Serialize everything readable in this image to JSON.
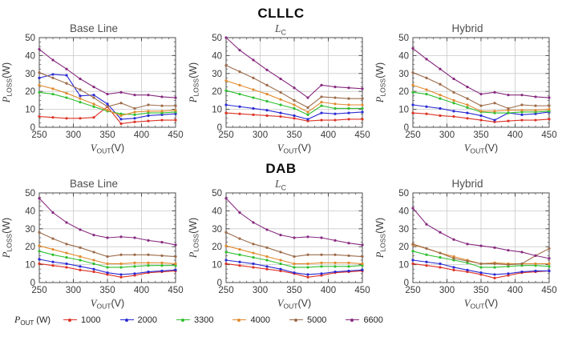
{
  "figure": {
    "background": "#ffffff",
    "frame_color": "#4d4d4d",
    "grid_color": "#c9c9c9",
    "tick_label_color": "#3a3a3a",
    "title_color": "#4f4f4f"
  },
  "groups": [
    {
      "title": "CLLLC"
    },
    {
      "title": "DAB"
    }
  ],
  "axes": {
    "x": {
      "sym": "V",
      "sub": "OUT",
      "unit": "(V)",
      "min": 250,
      "max": 450,
      "ticks": [
        250,
        300,
        350,
        400,
        450
      ],
      "grid": [
        300,
        350,
        400
      ],
      "minor_step": 10
    },
    "y": {
      "sym": "P",
      "sub": "LOSS",
      "unit": "(W)",
      "min": 0,
      "max": 50,
      "ticks": [
        0,
        10,
        20,
        30,
        40,
        50
      ],
      "grid": [
        10,
        20,
        30,
        40
      ],
      "minor_step": 2.5
    }
  },
  "legend": {
    "label_sym": "P",
    "label_sub": "OUT",
    "label_unit": "(W)",
    "entries": [
      {
        "label": "1000",
        "color": "#dd3226"
      },
      {
        "label": "2000",
        "color": "#2a2ad4"
      },
      {
        "label": "3300",
        "color": "#2fbf2f"
      },
      {
        "label": "4000",
        "color": "#e08a2e"
      },
      {
        "label": "5000",
        "color": "#9c6b4a"
      },
      {
        "label": "6600",
        "color": "#872a7f"
      }
    ]
  },
  "chart_data": [
    {
      "type": "line",
      "group": "CLLLC",
      "title": {
        "text": "Base Line"
      },
      "xlabel": "V_OUT(V)",
      "ylabel": "P_LOSS(W)",
      "xlim": [
        250,
        450
      ],
      "ylim": [
        0,
        50
      ],
      "x": [
        250,
        270,
        290,
        310,
        330,
        350,
        370,
        390,
        410,
        430,
        450
      ],
      "series": [
        {
          "name": "1000",
          "color": "#dd3226",
          "values": [
            6,
            5.5,
            5,
            5,
            5.5,
            11.5,
            2,
            3,
            3.5,
            4,
            4
          ]
        },
        {
          "name": "2000",
          "color": "#2a2ad4",
          "values": [
            27.5,
            29.5,
            29,
            17.5,
            18,
            13,
            4.5,
            5,
            6.5,
            7,
            7.5
          ]
        },
        {
          "name": "3300",
          "color": "#2fbf2f",
          "values": [
            19.5,
            18.5,
            16.5,
            14,
            11.5,
            9,
            7.5,
            7,
            8,
            8,
            8.5
          ]
        },
        {
          "name": "4000",
          "color": "#e08a2e",
          "values": [
            23.5,
            21.5,
            19,
            16,
            13,
            9.5,
            6.5,
            8.5,
            9,
            9,
            9.5
          ]
        },
        {
          "name": "5000",
          "color": "#9c6b4a",
          "values": [
            30.5,
            27.5,
            24.5,
            21,
            16.5,
            11.5,
            13.5,
            10.5,
            12.5,
            12,
            12
          ]
        },
        {
          "name": "6600",
          "color": "#872a7f",
          "values": [
            43.5,
            37.5,
            32.5,
            27,
            22.5,
            18.5,
            19.5,
            18,
            18,
            17,
            16.5
          ]
        }
      ]
    },
    {
      "type": "line",
      "group": "CLLLC",
      "title": {
        "sym": "L",
        "sub": "C"
      },
      "xlabel": "V_OUT(V)",
      "ylabel": "P_LOSS(W)",
      "xlim": [
        250,
        450
      ],
      "ylim": [
        0,
        50
      ],
      "x": [
        250,
        270,
        290,
        310,
        330,
        350,
        370,
        390,
        410,
        430,
        450
      ],
      "series": [
        {
          "name": "1000",
          "color": "#dd3226",
          "values": [
            8,
            7.5,
            7,
            6.5,
            6,
            5,
            3.5,
            4,
            4,
            4.5,
            4.5
          ]
        },
        {
          "name": "2000",
          "color": "#2a2ad4",
          "values": [
            12.5,
            11.5,
            10.5,
            9.5,
            8,
            6.5,
            4.5,
            8,
            7.5,
            8,
            8.5
          ]
        },
        {
          "name": "3300",
          "color": "#2fbf2f",
          "values": [
            20.5,
            18.5,
            16.5,
            14.5,
            12.5,
            10.5,
            7,
            12,
            10.5,
            10.5,
            10.5
          ]
        },
        {
          "name": "4000",
          "color": "#e08a2e",
          "values": [
            26,
            23.5,
            21,
            18.5,
            15.5,
            12.5,
            8.5,
            14,
            13,
            12.5,
            12.5
          ]
        },
        {
          "name": "5000",
          "color": "#9c6b4a",
          "values": [
            34.5,
            31,
            27.5,
            23.5,
            19.5,
            15,
            11,
            17,
            16.5,
            16,
            16
          ]
        },
        {
          "name": "6600",
          "color": "#872a7f",
          "values": [
            50,
            43,
            37.5,
            32,
            27,
            22,
            16.5,
            23.5,
            22.5,
            22,
            21.5
          ]
        }
      ]
    },
    {
      "type": "line",
      "group": "CLLLC",
      "title": {
        "text": "Hybrid"
      },
      "xlabel": "V_OUT(V)",
      "ylabel": "P_LOSS(W)",
      "xlim": [
        250,
        450
      ],
      "ylim": [
        0,
        50
      ],
      "x": [
        250,
        270,
        290,
        310,
        330,
        350,
        370,
        390,
        410,
        430,
        450
      ],
      "series": [
        {
          "name": "1000",
          "color": "#dd3226",
          "values": [
            8,
            7.5,
            6.5,
            6,
            5,
            4,
            3,
            3.5,
            4,
            4,
            4.5
          ]
        },
        {
          "name": "2000",
          "color": "#2a2ad4",
          "values": [
            12.5,
            11.5,
            10.5,
            9,
            8,
            6.5,
            4,
            8,
            7,
            7.5,
            8.5
          ]
        },
        {
          "name": "3300",
          "color": "#2fbf2f",
          "values": [
            19.5,
            18.5,
            16,
            13.5,
            11,
            8.5,
            8,
            8,
            8.5,
            8.5,
            9
          ]
        },
        {
          "name": "4000",
          "color": "#e08a2e",
          "values": [
            23.5,
            21,
            18,
            15,
            12.5,
            9,
            9,
            9.5,
            9.5,
            9.5,
            10
          ]
        },
        {
          "name": "5000",
          "color": "#9c6b4a",
          "values": [
            30.5,
            27.5,
            24,
            19.5,
            16,
            12,
            13.5,
            10.5,
            12.5,
            12,
            12
          ]
        },
        {
          "name": "6600",
          "color": "#872a7f",
          "values": [
            44,
            38,
            32.5,
            27,
            22.5,
            18.5,
            19.5,
            18,
            18,
            17,
            16.5
          ]
        }
      ]
    },
    {
      "type": "line",
      "group": "DAB",
      "title": {
        "text": "Base Line"
      },
      "xlabel": "V_OUT(V)",
      "ylabel": "P_LOSS(W)",
      "xlim": [
        250,
        450
      ],
      "ylim": [
        0,
        50
      ],
      "x": [
        250,
        270,
        290,
        310,
        330,
        350,
        370,
        390,
        410,
        430,
        450
      ],
      "series": [
        {
          "name": "1000",
          "color": "#dd3226",
          "values": [
            10.5,
            9.5,
            8.5,
            7,
            6,
            4.5,
            3,
            4,
            5.5,
            6,
            6.5
          ]
        },
        {
          "name": "2000",
          "color": "#2a2ad4",
          "values": [
            13,
            11.5,
            10.5,
            9,
            7.5,
            5.5,
            4.5,
            5,
            6,
            6.5,
            7
          ]
        },
        {
          "name": "3300",
          "color": "#2fbf2f",
          "values": [
            17.5,
            15.5,
            14,
            12.5,
            10.5,
            8.5,
            8.5,
            9,
            9.5,
            9.5,
            9.5
          ]
        },
        {
          "name": "4000",
          "color": "#e08a2e",
          "values": [
            20.5,
            18.5,
            16.5,
            14.5,
            12.5,
            10.5,
            10.5,
            11,
            11,
            11,
            10.5
          ]
        },
        {
          "name": "5000",
          "color": "#9c6b4a",
          "values": [
            28,
            24.5,
            21.5,
            19.5,
            17,
            14.5,
            15.5,
            15.5,
            15.5,
            15,
            14.5
          ]
        },
        {
          "name": "6600",
          "color": "#872a7f",
          "values": [
            47,
            39,
            33.5,
            29.5,
            26.5,
            25,
            25.5,
            25,
            23.5,
            22.5,
            21
          ]
        }
      ]
    },
    {
      "type": "line",
      "group": "DAB",
      "title": {
        "sym": "L",
        "sub": "C"
      },
      "xlabel": "V_OUT(V)",
      "ylabel": "P_LOSS(W)",
      "xlim": [
        250,
        450
      ],
      "ylim": [
        0,
        50
      ],
      "x": [
        250,
        270,
        290,
        310,
        330,
        350,
        370,
        390,
        410,
        430,
        450
      ],
      "series": [
        {
          "name": "1000",
          "color": "#dd3226",
          "values": [
            10.5,
            9.5,
            8.5,
            7.5,
            6.5,
            5,
            3,
            4,
            5.5,
            6,
            6.5
          ]
        },
        {
          "name": "2000",
          "color": "#2a2ad4",
          "values": [
            12.5,
            11.5,
            10.5,
            9,
            7.5,
            5.5,
            4.5,
            5,
            6,
            6.5,
            7
          ]
        },
        {
          "name": "3300",
          "color": "#2fbf2f",
          "values": [
            17,
            15.5,
            14,
            12.5,
            10.5,
            8.5,
            8.5,
            9,
            9,
            9,
            9.5
          ]
        },
        {
          "name": "4000",
          "color": "#e08a2e",
          "values": [
            20.5,
            18.5,
            16.5,
            14.5,
            12.5,
            10.5,
            10.5,
            11,
            11,
            11,
            10.5
          ]
        },
        {
          "name": "5000",
          "color": "#9c6b4a",
          "values": [
            28,
            24.5,
            21.5,
            19.5,
            17,
            14.5,
            15.5,
            15.5,
            15.5,
            15,
            14.5
          ]
        },
        {
          "name": "6600",
          "color": "#872a7f",
          "values": [
            47,
            39,
            33.5,
            29.5,
            26.5,
            25,
            25.5,
            25,
            23.5,
            22,
            21
          ]
        }
      ]
    },
    {
      "type": "line",
      "group": "DAB",
      "title": {
        "text": "Hybrid"
      },
      "xlabel": "V_OUT(V)",
      "ylabel": "P_LOSS(W)",
      "xlim": [
        250,
        450
      ],
      "ylim": [
        0,
        50
      ],
      "x": [
        250,
        270,
        290,
        310,
        330,
        350,
        370,
        390,
        410,
        430,
        450
      ],
      "series": [
        {
          "name": "1000",
          "color": "#dd3226",
          "values": [
            10.5,
            9.5,
            8.5,
            7,
            6,
            4.5,
            2.5,
            4,
            5.5,
            6,
            6.5
          ]
        },
        {
          "name": "2000",
          "color": "#2a2ad4",
          "values": [
            12.5,
            11.5,
            10.5,
            8.5,
            7,
            5.5,
            4.5,
            5,
            6,
            6.5,
            6.5
          ]
        },
        {
          "name": "3300",
          "color": "#2fbf2f",
          "values": [
            17.5,
            15.5,
            14,
            12.5,
            11,
            8.5,
            8.5,
            9,
            9.5,
            9.5,
            9
          ]
        },
        {
          "name": "4000",
          "color": "#e08a2e",
          "values": [
            21,
            19,
            16.5,
            14.5,
            12.5,
            10.5,
            11,
            10.5,
            10.5,
            10.5,
            10.5
          ]
        },
        {
          "name": "5000",
          "color": "#9c6b4a",
          "values": [
            21.5,
            19,
            16.5,
            13.5,
            12,
            10.5,
            10.5,
            10,
            10.5,
            15,
            19
          ]
        },
        {
          "name": "6600",
          "color": "#872a7f",
          "values": [
            41.5,
            32.5,
            28,
            24,
            21.5,
            20.5,
            19.5,
            18,
            17,
            15,
            13.5
          ]
        }
      ]
    }
  ]
}
